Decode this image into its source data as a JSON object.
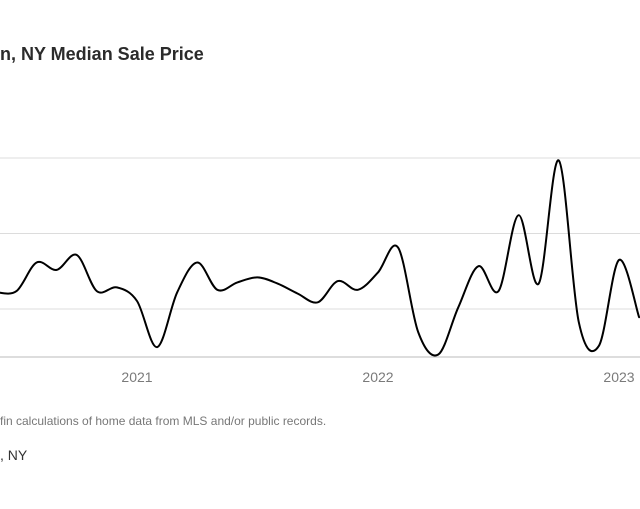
{
  "header": {
    "title": "n, NY Median Sale Price"
  },
  "chart_data": {
    "type": "line",
    "title": "n, NY Median Sale Price",
    "xlabel": "",
    "ylabel": "",
    "x_tick_labels": [
      "2021",
      "2022",
      "2023"
    ],
    "x": [
      "2020-06",
      "2020-07",
      "2020-08",
      "2020-09",
      "2020-10",
      "2020-11",
      "2020-12",
      "2021-01",
      "2021-02",
      "2021-03",
      "2021-04",
      "2021-05",
      "2021-06",
      "2021-07",
      "2021-08",
      "2021-09",
      "2021-10",
      "2021-11",
      "2021-12",
      "2022-01",
      "2022-02",
      "2022-03",
      "2022-04",
      "2022-05",
      "2022-06",
      "2022-07",
      "2022-08",
      "2022-09",
      "2022-10",
      "2022-11",
      "2022-12",
      "2023-01",
      "2023-02"
    ],
    "series": [
      {
        "values": [
          0.52,
          0.53,
          0.76,
          0.7,
          0.82,
          0.53,
          0.56,
          0.45,
          0.08,
          0.52,
          0.76,
          0.54,
          0.6,
          0.64,
          0.59,
          0.51,
          0.44,
          0.61,
          0.54,
          0.68,
          0.88,
          0.2,
          0.02,
          0.4,
          0.73,
          0.53,
          1.14,
          0.59,
          1.58,
          0.28,
          0.09,
          0.78,
          0.32
        ]
      }
    ],
    "ylim": [
      0,
      1.6
    ],
    "grid": true,
    "legend": "none"
  },
  "footer": {
    "source_note": "fin calculations of home data from MLS and/or public records.",
    "location": ", NY"
  }
}
